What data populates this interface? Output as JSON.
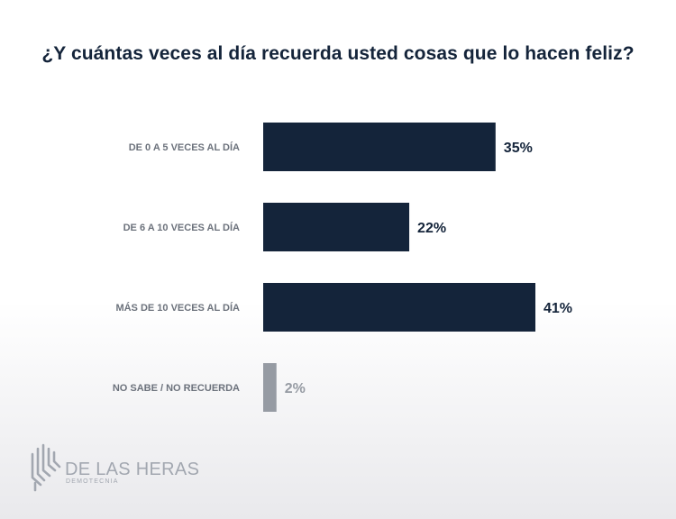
{
  "chart_data": {
    "type": "bar",
    "orientation": "horizontal",
    "title": "¿Y cuántas veces al día recuerda usted cosas que lo hacen feliz?",
    "categories": [
      "DE 0 A 5 VECES AL DÍA",
      "DE 6 A 10 VECES AL DÍA",
      "MÁS DE 10 VECES AL DÍA",
      "NO SABE / NO RECUERDA"
    ],
    "values": [
      35,
      22,
      41,
      2
    ],
    "value_labels": [
      "35%",
      "22%",
      "41%",
      "2%"
    ],
    "colors": [
      "#14243a",
      "#14243a",
      "#14243a",
      "#969ba3"
    ],
    "label_colors": [
      "#14243a",
      "#14243a",
      "#14243a",
      "#969ba3"
    ],
    "xlim": [
      0,
      41
    ],
    "grid": false,
    "legend": "none"
  },
  "branding": {
    "name": "DE LAS HERAS",
    "subtitle": "DEMOTECNIA",
    "color": "#a2a7b0"
  }
}
